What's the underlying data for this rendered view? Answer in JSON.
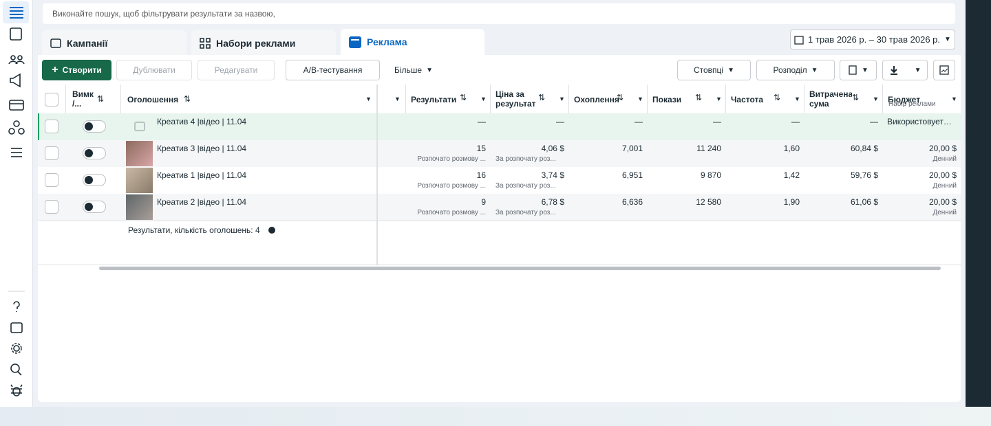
{
  "search_placeholder": "Виконайте пошук, щоб фільтрувати результати за назвою,",
  "tabs": [
    "Кампанії",
    "Набори реклами",
    "Реклама"
  ],
  "date_range": "1 трав 2026 р. – 30 трав 2026 р.",
  "toolbar": {
    "create": "Створити",
    "duplicate": "Дублювати",
    "edit": "Редагувати",
    "ab_test": "A/B-тестування",
    "more": "Більше",
    "columns": "Стовпці",
    "breakdown": "Розподіл"
  },
  "table": {
    "headers": [
      "Вимк /...",
      "Оголошення",
      "Результати",
      "Ціна за результат",
      "Охоплення",
      "Покази",
      "Частота",
      "Витрачена сума",
      "Бюджет"
    ],
    "budget_header_sub": "Набір реклами",
    "rows": [
      {
        "name": "Креатив 4 |відео | 11.04",
        "results": "—",
        "cost": "—",
        "reach": "—",
        "impressions": "—",
        "frequency": "—",
        "spent": "—",
        "budget": "Використовует…"
      },
      {
        "name": "Креатив 3 |відео | 11.04",
        "results": "15",
        "results_sub": "Розпочато розмову ...",
        "cost": "4,06 $",
        "cost_sub": "За розпочату роз...",
        "reach": "7,001",
        "impressions": "11 240",
        "frequency": "1,60",
        "spent": "60,84 $",
        "budget": "20,00 $",
        "budget_sub": "Денний"
      },
      {
        "name": "Креатив 1 |відео | 11.04",
        "results": "16",
        "results_sub": "Розпочато розмову ...",
        "cost": "3,74 $",
        "cost_sub": "За розпочату роз...",
        "reach": "6,951",
        "impressions": "9 870",
        "frequency": "1,42",
        "spent": "59,76 $",
        "budget": "20,00 $",
        "budget_sub": "Денний"
      },
      {
        "name": "Креатив 2 |відео | 11.04",
        "results": "9",
        "results_sub": "Розпочато розмову ...",
        "cost": "6,78 $",
        "cost_sub": "За розпочату роз...",
        "reach": "6,636",
        "impressions": "12 580",
        "frequency": "1,90",
        "spent": "61,06 $",
        "budget": "20,00 $",
        "budget_sub": "Денний"
      }
    ],
    "footer": "Результати, кількість оголошень: 4"
  }
}
